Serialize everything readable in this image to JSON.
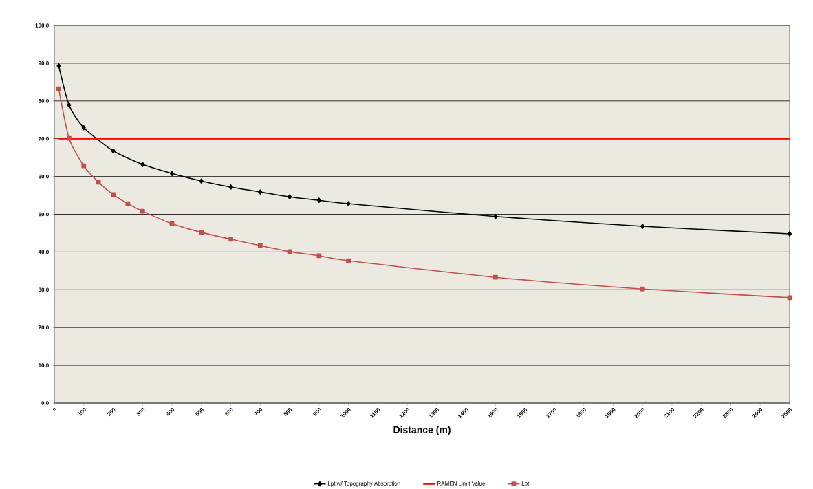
{
  "chart_data": {
    "type": "line",
    "xlabel": "Distance (m)",
    "xlim": [
      0,
      2500
    ],
    "xticks": [
      0,
      100,
      200,
      300,
      400,
      500,
      600,
      700,
      800,
      900,
      1000,
      1100,
      1200,
      1300,
      1400,
      1500,
      1600,
      1700,
      1800,
      1900,
      2000,
      2100,
      2200,
      2300,
      2400,
      2500
    ],
    "ylim": [
      0,
      100
    ],
    "yticks": [
      {
        "value": 0,
        "label": "0.0"
      },
      {
        "value": 10,
        "label": "10.0"
      },
      {
        "value": 20,
        "label": "20.0"
      },
      {
        "value": 30,
        "label": "30.0"
      },
      {
        "value": 40,
        "label": "40.0"
      },
      {
        "value": 50,
        "label": "50.0"
      },
      {
        "value": 60,
        "label": "60.0"
      },
      {
        "value": 70,
        "label": "70.0"
      },
      {
        "value": 80,
        "label": "80.0"
      },
      {
        "value": 90,
        "label": "90.0"
      },
      {
        "value": 100,
        "label": "100.0"
      }
    ],
    "grid": "y",
    "legend": "bottom",
    "series": [
      {
        "name": "Lpt w/ Topography Absorption",
        "color": "#000000",
        "marker": "diamond",
        "x": [
          15,
          50,
          100,
          200,
          300,
          400,
          500,
          600,
          700,
          800,
          900,
          1000,
          1500,
          2000,
          2500
        ],
        "values": [
          89.3,
          78.9,
          72.9,
          66.8,
          63.2,
          60.8,
          58.8,
          57.2,
          55.9,
          54.6,
          53.7,
          52.8,
          49.4,
          46.8,
          44.8
        ]
      },
      {
        "name": "RAMEN Limit Value",
        "color": "#ff0000",
        "marker": "none",
        "x": [
          15,
          2500
        ],
        "values": [
          70,
          70
        ]
      },
      {
        "name": "Lpt",
        "color": "#c0504d",
        "marker": "square",
        "x": [
          15,
          50,
          100,
          150,
          200,
          250,
          300,
          400,
          500,
          600,
          700,
          800,
          900,
          1000,
          1500,
          2000,
          2500
        ],
        "values": [
          83.2,
          70.1,
          62.8,
          58.5,
          55.2,
          52.8,
          50.8,
          47.5,
          45.2,
          43.4,
          41.7,
          40.1,
          39.0,
          37.7,
          33.3,
          30.2,
          27.9
        ]
      }
    ]
  }
}
